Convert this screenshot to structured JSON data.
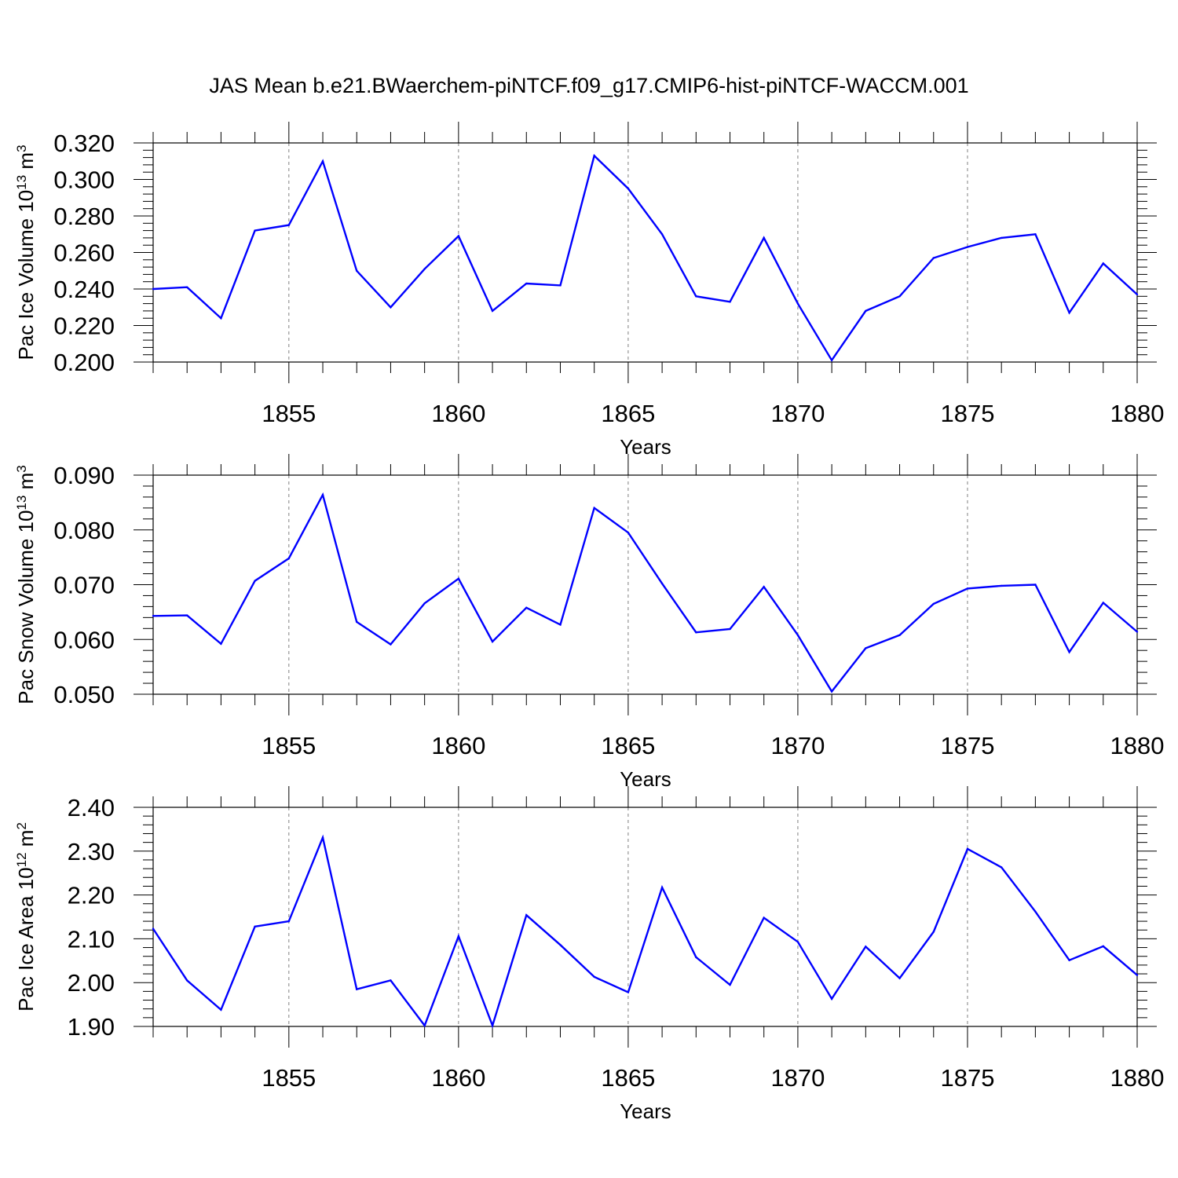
{
  "title": "JAS Mean b.e21.BWaerchem-piNTCF.f09_g17.CMIP6-hist-piNTCF-WACCM.001",
  "colors": {
    "line": "#0000ff",
    "axis": "#000000",
    "grid": "#808080"
  },
  "chart_data": [
    {
      "type": "line",
      "xlabel": "Years",
      "ylabel": {
        "prefix": "Pac Ice Volume 10",
        "exponent": "13",
        "unit": " m",
        "unit_exponent": "3"
      },
      "xlim": [
        1851,
        1880
      ],
      "ylim": [
        0.2,
        0.32
      ],
      "grid": "dashed vertical at major x ticks",
      "x_ticks": [
        "1855",
        "1860",
        "1865",
        "1870",
        "1875",
        "1880"
      ],
      "y_ticks": [
        "0.200",
        "0.220",
        "0.240",
        "0.260",
        "0.280",
        "0.300",
        "0.320"
      ],
      "x": [
        1851,
        1852,
        1853,
        1854,
        1855,
        1856,
        1857,
        1858,
        1859,
        1860,
        1861,
        1862,
        1863,
        1864,
        1865,
        1866,
        1867,
        1868,
        1869,
        1870,
        1871,
        1872,
        1873,
        1874,
        1875,
        1876,
        1877,
        1878,
        1879,
        1880
      ],
      "values": [
        0.24,
        0.241,
        0.224,
        0.272,
        0.275,
        0.31,
        0.25,
        0.23,
        0.251,
        0.269,
        0.228,
        0.243,
        0.242,
        0.313,
        0.295,
        0.27,
        0.236,
        0.233,
        0.268,
        0.232,
        0.201,
        0.228,
        0.236,
        0.257,
        0.263,
        0.268,
        0.27,
        0.227,
        0.254,
        0.237
      ]
    },
    {
      "type": "line",
      "xlabel": "Years",
      "ylabel": {
        "prefix": "Pac Snow Volume 10",
        "exponent": "13",
        "unit": " m",
        "unit_exponent": "3"
      },
      "xlim": [
        1851,
        1880
      ],
      "ylim": [
        0.05,
        0.09
      ],
      "grid": "dashed vertical at major x ticks",
      "x_ticks": [
        "1855",
        "1860",
        "1865",
        "1870",
        "1875",
        "1880"
      ],
      "y_ticks": [
        "0.050",
        "0.060",
        "0.070",
        "0.080",
        "0.090"
      ],
      "x": [
        1851,
        1852,
        1853,
        1854,
        1855,
        1856,
        1857,
        1858,
        1859,
        1860,
        1861,
        1862,
        1863,
        1864,
        1865,
        1866,
        1867,
        1868,
        1869,
        1870,
        1871,
        1872,
        1873,
        1874,
        1875,
        1876,
        1877,
        1878,
        1879,
        1880
      ],
      "values": [
        0.0643,
        0.0644,
        0.0592,
        0.0707,
        0.0748,
        0.0864,
        0.0632,
        0.0591,
        0.0666,
        0.0711,
        0.0596,
        0.0658,
        0.0627,
        0.084,
        0.0795,
        0.0702,
        0.0613,
        0.0619,
        0.0696,
        0.0608,
        0.0505,
        0.0584,
        0.0608,
        0.0665,
        0.0693,
        0.0698,
        0.07,
        0.0577,
        0.0667,
        0.0614
      ]
    },
    {
      "type": "line",
      "xlabel": "Years",
      "ylabel": {
        "prefix": "Pac Ice Area 10",
        "exponent": "12",
        "unit": " m",
        "unit_exponent": "2"
      },
      "xlim": [
        1851,
        1880
      ],
      "ylim": [
        1.9,
        2.4
      ],
      "grid": "dashed vertical at major x ticks",
      "x_ticks": [
        "1855",
        "1860",
        "1865",
        "1870",
        "1875",
        "1880"
      ],
      "y_ticks": [
        "1.90",
        "2.00",
        "2.10",
        "2.20",
        "2.30",
        "2.40"
      ],
      "x": [
        1851,
        1852,
        1853,
        1854,
        1855,
        1856,
        1857,
        1858,
        1859,
        1860,
        1861,
        1862,
        1863,
        1864,
        1865,
        1866,
        1867,
        1868,
        1869,
        1870,
        1871,
        1872,
        1873,
        1874,
        1875,
        1876,
        1877,
        1878,
        1879,
        1880
      ],
      "values": [
        2.123,
        2.005,
        1.938,
        2.128,
        2.14,
        2.331,
        1.985,
        2.005,
        1.902,
        2.106,
        1.902,
        2.154,
        2.086,
        2.013,
        1.978,
        2.217,
        2.058,
        1.995,
        2.148,
        2.093,
        1.963,
        2.082,
        2.01,
        2.116,
        2.305,
        2.263,
        2.162,
        2.051,
        2.083,
        2.017
      ]
    }
  ]
}
